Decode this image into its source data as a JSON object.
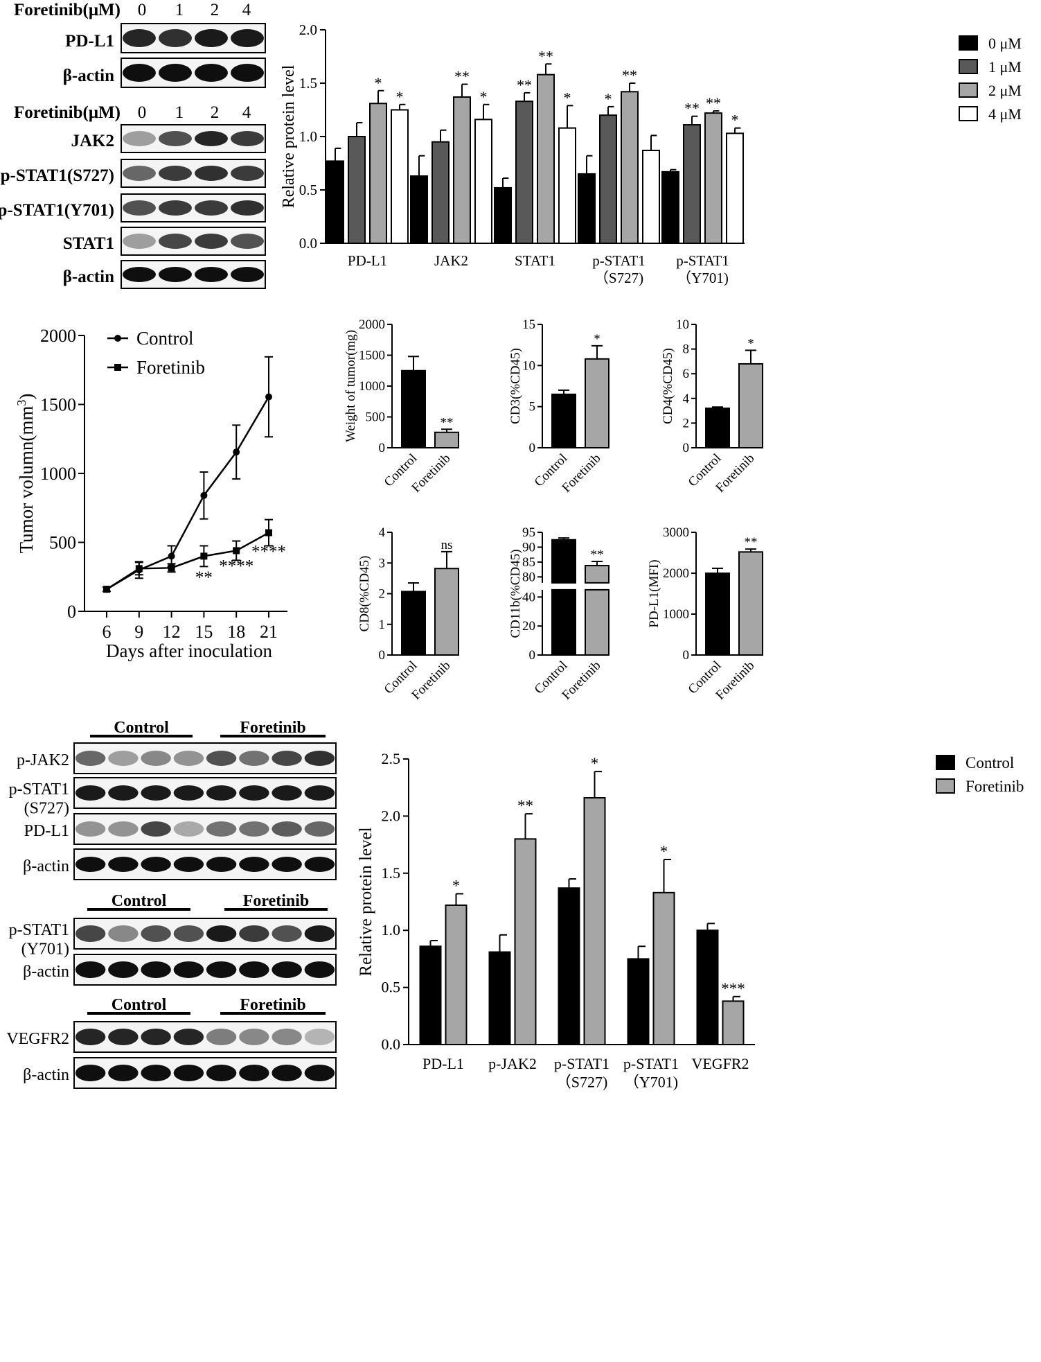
{
  "blots_top": {
    "group1": {
      "header_label": "Foretinib(μM)",
      "doses": [
        "0",
        "1",
        "2",
        "4"
      ],
      "rows": [
        "PD-L1",
        "β-actin"
      ]
    },
    "group2": {
      "header_label": "Foretinib(μM)",
      "doses": [
        "0",
        "1",
        "2",
        "4"
      ],
      "rows": [
        "JAK2",
        "p-STAT1(S727)",
        "p-STAT1(Y701)",
        "STAT1",
        "β-actin"
      ]
    }
  },
  "blots_bottom": {
    "group_labels": [
      "Control",
      "Foretinib"
    ],
    "block1_rows": [
      "p-JAK2",
      "p-STAT1\n(S727)",
      "PD-L1",
      "β-actin"
    ],
    "block2_rows": [
      "p-STAT1\n(Y701)",
      "β-actin"
    ],
    "block3_rows": [
      "VEGFR2",
      "β-actin"
    ]
  },
  "chart_data": [
    {
      "id": "top-bar",
      "type": "bar",
      "ylabel": "Relative protein level",
      "ylim": [
        0,
        2.0
      ],
      "yticks": [
        "0.0",
        "0.5",
        "1.0",
        "1.5",
        "2.0"
      ],
      "categories": [
        "PD-L1",
        "JAK2",
        "STAT1",
        "p-STAT1\n（S727)",
        "p-STAT1\n（Y701)"
      ],
      "series": [
        {
          "name": "0 μM",
          "color": "#000000",
          "values": [
            0.77,
            0.63,
            0.52,
            0.65,
            0.67
          ],
          "errors": [
            0.12,
            0.19,
            0.09,
            0.17,
            0.02
          ],
          "sig": [
            "",
            "",
            "",
            "",
            ""
          ]
        },
        {
          "name": "1 μM",
          "color": "#595959",
          "values": [
            1.0,
            0.95,
            1.33,
            1.2,
            1.11
          ],
          "errors": [
            0.13,
            0.11,
            0.08,
            0.08,
            0.08
          ],
          "sig": [
            "",
            "",
            "**",
            "*",
            "**"
          ]
        },
        {
          "name": "2 μM",
          "color": "#a6a6a6",
          "values": [
            1.31,
            1.37,
            1.58,
            1.42,
            1.22
          ],
          "errors": [
            0.12,
            0.12,
            0.1,
            0.08,
            0.02
          ],
          "sig": [
            "*",
            "**",
            "**",
            "**",
            "**"
          ]
        },
        {
          "name": "4 μM",
          "color": "#ffffff",
          "values": [
            1.25,
            1.16,
            1.08,
            0.87,
            1.03
          ],
          "errors": [
            0.05,
            0.14,
            0.21,
            0.14,
            0.05
          ],
          "sig": [
            "*",
            "*",
            "*",
            "",
            "*"
          ]
        }
      ],
      "legend": "top-right"
    },
    {
      "id": "tumor-line",
      "type": "line",
      "xlabel": "Days after inoculation",
      "ylabel": "Tumor volumn(mm",
      "ylabel_sup": "3",
      "ylabel_tail": ")",
      "x": [
        6,
        9,
        12,
        15,
        18,
        21
      ],
      "ylim": [
        0,
        2000
      ],
      "yticks": [
        "0",
        "500",
        "1000",
        "1500",
        "2000"
      ],
      "xticks": [
        "6",
        "9",
        "12",
        "15",
        "18",
        "21"
      ],
      "series": [
        {
          "name": "Control",
          "marker": "circle",
          "values": [
            160,
            300,
            400,
            840,
            1155,
            1555
          ],
          "errors": [
            15,
            60,
            75,
            170,
            195,
            290
          ]
        },
        {
          "name": "Foretinib",
          "marker": "square",
          "values": [
            160,
            310,
            315,
            400,
            440,
            570
          ],
          "errors": [
            15,
            45,
            30,
            75,
            70,
            95
          ]
        }
      ],
      "annotations": [
        {
          "x": 15,
          "text": "**",
          "y": 205
        },
        {
          "x": 18,
          "text": "****",
          "y": 290
        },
        {
          "x": 21,
          "text": "****",
          "y": 395
        }
      ],
      "legend": "top-left"
    },
    {
      "id": "weight",
      "type": "bar",
      "ylabel": "Weight of tumor(mg)",
      "ylim": [
        0,
        2000
      ],
      "yticks": [
        "0",
        "500",
        "1000",
        "1500",
        "2000"
      ],
      "categories": [
        "Control",
        "Foretinib"
      ],
      "values": [
        1250,
        250
      ],
      "errors": [
        230,
        50
      ],
      "sig": [
        "",
        "**"
      ],
      "colors": [
        "#000000",
        "#a6a6a6"
      ]
    },
    {
      "id": "cd3",
      "type": "bar",
      "ylabel": "CD3(%CD45)",
      "ylim": [
        0,
        15
      ],
      "yticks": [
        "0",
        "5",
        "10",
        "15"
      ],
      "categories": [
        "Control",
        "Foretinib"
      ],
      "values": [
        6.5,
        10.8
      ],
      "errors": [
        0.5,
        1.6
      ],
      "sig": [
        "",
        "*"
      ],
      "colors": [
        "#000000",
        "#a6a6a6"
      ]
    },
    {
      "id": "cd4",
      "type": "bar",
      "ylabel": "CD4(%CD45)",
      "ylim": [
        0,
        10
      ],
      "yticks": [
        "0",
        "2",
        "4",
        "6",
        "8",
        "10"
      ],
      "categories": [
        "Control",
        "Foretinib"
      ],
      "values": [
        3.2,
        6.8
      ],
      "errors": [
        0.1,
        1.1
      ],
      "sig": [
        "",
        "*"
      ],
      "colors": [
        "#000000",
        "#a6a6a6"
      ]
    },
    {
      "id": "cd8",
      "type": "bar",
      "ylabel": "CD8(%CD45)",
      "ylim": [
        0,
        4
      ],
      "yticks": [
        "0",
        "1",
        "2",
        "3",
        "4"
      ],
      "categories": [
        "Control",
        "Foretinib"
      ],
      "values": [
        2.07,
        2.82
      ],
      "errors": [
        0.28,
        0.55
      ],
      "sig": [
        "",
        "ns"
      ],
      "colors": [
        "#000000",
        "#a6a6a6"
      ]
    },
    {
      "id": "cd11b",
      "type": "bar",
      "ylabel": "CD11b(%CD45)",
      "axis_break": true,
      "ylim_lower": [
        0,
        45
      ],
      "ylim_upper": [
        78,
        95
      ],
      "yticks_lower": [
        "0",
        "20",
        "40"
      ],
      "yticks_upper": [
        "80",
        "85",
        "90",
        "95"
      ],
      "categories": [
        "Control",
        "Foretinib"
      ],
      "values": [
        92.5,
        83.8
      ],
      "errors": [
        0.6,
        1.4
      ],
      "sig": [
        "",
        "**"
      ],
      "colors": [
        "#000000",
        "#a6a6a6"
      ]
    },
    {
      "id": "pdl1-mfi",
      "type": "bar",
      "ylabel": "PD-L1(MFI)",
      "ylim": [
        0,
        3000
      ],
      "yticks": [
        "0",
        "1000",
        "2000",
        "3000"
      ],
      "categories": [
        "Control",
        "Foretinib"
      ],
      "values": [
        2000,
        2520
      ],
      "errors": [
        120,
        70
      ],
      "sig": [
        "",
        "**"
      ],
      "colors": [
        "#000000",
        "#a6a6a6"
      ]
    },
    {
      "id": "bottom-bar",
      "type": "bar",
      "ylabel": "Relative protein level",
      "ylim": [
        0,
        2.5
      ],
      "yticks": [
        "0.0",
        "0.5",
        "1.0",
        "1.5",
        "2.0",
        "2.5"
      ],
      "categories": [
        "PD-L1",
        "p-JAK2",
        "p-STAT1\n（S727)",
        "p-STAT1\n（Y701)",
        "VEGFR2"
      ],
      "series": [
        {
          "name": "Control",
          "color": "#000000",
          "values": [
            0.86,
            0.81,
            1.37,
            0.75,
            1.0
          ],
          "errors": [
            0.05,
            0.15,
            0.08,
            0.11,
            0.06
          ],
          "sig": [
            "",
            "",
            "",
            "",
            ""
          ]
        },
        {
          "name": "Foretinib",
          "color": "#a6a6a6",
          "values": [
            1.22,
            1.8,
            2.16,
            1.33,
            0.38
          ],
          "errors": [
            0.1,
            0.22,
            0.23,
            0.29,
            0.04
          ],
          "sig": [
            "*",
            "**",
            "*",
            "*",
            "***"
          ]
        }
      ],
      "legend": "top-right"
    }
  ]
}
